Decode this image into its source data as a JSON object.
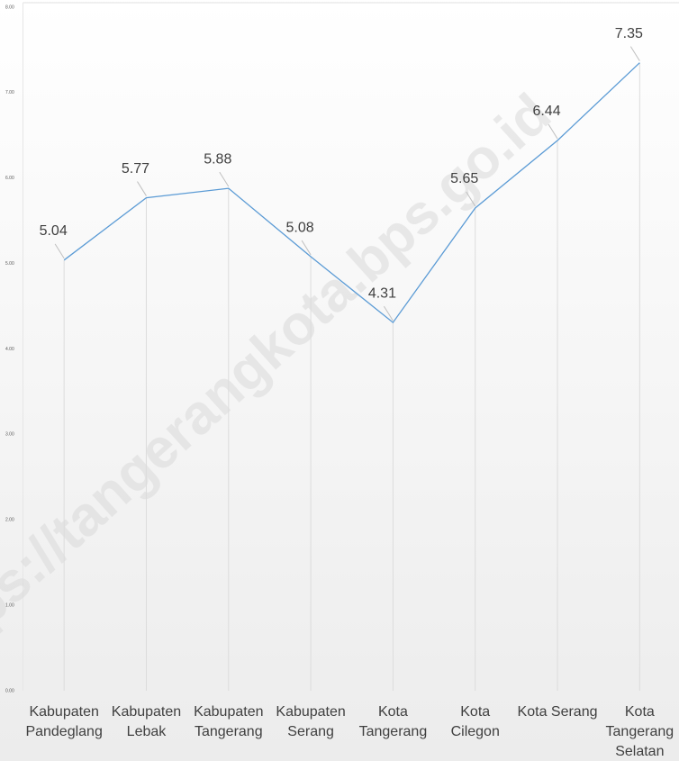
{
  "chart_data": {
    "type": "line",
    "watermark": "https://tangerangkota.bps.go.id",
    "categories": [
      "Kabupaten\nPandeglang",
      "Kabupaten\nLebak",
      "Kabupaten\nTangerang",
      "Kabupaten\nSerang",
      "Kota\nTangerang",
      "Kota\nCilegon",
      "Kota Serang",
      "Kota\nTangerang\nSelatan"
    ],
    "series": [
      {
        "color": "#5b9bd5",
        "values": [
          5.04,
          5.77,
          5.88,
          5.08,
          4.31,
          5.65,
          6.44,
          7.35
        ]
      }
    ],
    "ylim": [
      0,
      8
    ],
    "yticks": [
      {
        "value": 0,
        "label": "0.00"
      },
      {
        "value": 1,
        "label": "1.00"
      },
      {
        "value": 2,
        "label": "2.00"
      },
      {
        "value": 3,
        "label": "3.00"
      },
      {
        "value": 4,
        "label": "4.00"
      },
      {
        "value": 5,
        "label": "5.00"
      },
      {
        "value": 6,
        "label": "6.00"
      },
      {
        "value": 7,
        "label": "7.00"
      },
      {
        "value": 8,
        "label": "8.00"
      }
    ],
    "drop_lines": true
  }
}
